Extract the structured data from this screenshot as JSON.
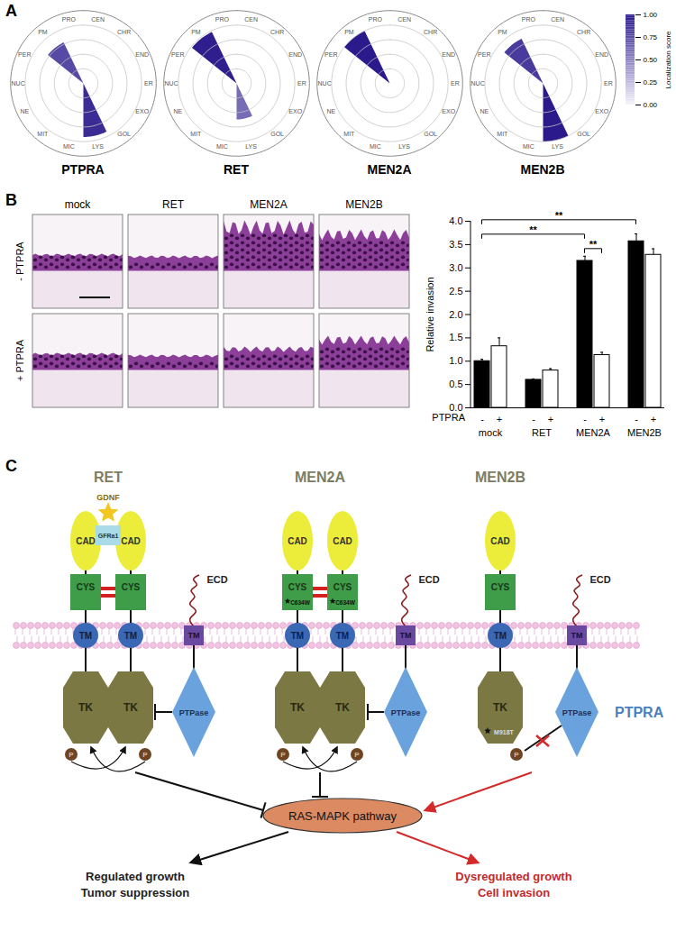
{
  "panel_labels": [
    "A",
    "B",
    "C"
  ],
  "colorbar": {
    "label": "Localization score",
    "range": [
      0,
      1
    ],
    "ticks": [
      {
        "value": 0,
        "label": "0.00"
      },
      {
        "value": 0.25,
        "label": "0.25"
      },
      {
        "value": 0.5,
        "label": "0.50"
      },
      {
        "value": 0.75,
        "label": "0.75"
      },
      {
        "value": 1,
        "label": "1.00"
      }
    ],
    "colors": [
      "#f4f3fb",
      "#2a1a8c"
    ]
  },
  "chart_data": [
    {
      "type": "polar_bar",
      "title": "PTPRA",
      "categories": [
        "CEN",
        "CHR",
        "END",
        "ER",
        "EXO",
        "GOL",
        "LYS",
        "MIC",
        "MIT",
        "NE",
        "NUC",
        "PER",
        "PM",
        "PRO"
      ],
      "values": [
        0,
        0,
        0,
        0,
        0,
        0,
        0.92,
        0,
        0,
        0,
        0,
        0,
        0.78,
        0
      ],
      "ylim": [
        0,
        1
      ],
      "yticks": [
        0.25,
        0.5,
        0.75,
        1
      ],
      "tick_labels": "x"
    },
    {
      "type": "polar_bar",
      "title": "RET",
      "categories": [
        "CEN",
        "CHR",
        "END",
        "ER",
        "EXO",
        "GOL",
        "LYS",
        "MIC",
        "MIT",
        "NE",
        "NUC",
        "PER",
        "PM",
        "PRO"
      ],
      "values": [
        0,
        0,
        0,
        0,
        0,
        0,
        0.62,
        0,
        0,
        0,
        0,
        0,
        0.98,
        0
      ],
      "ylim": [
        0,
        1
      ],
      "yticks": [
        0.25,
        0.5,
        0.75,
        1
      ],
      "tick_labels": "x"
    },
    {
      "type": "polar_bar",
      "title": "MEN2A",
      "categories": [
        "CEN",
        "CHR",
        "END",
        "ER",
        "EXO",
        "GOL",
        "LYS",
        "MIC",
        "MIT",
        "NE",
        "NUC",
        "PER",
        "PM",
        "PRO"
      ],
      "values": [
        0,
        0,
        0,
        0,
        0,
        0,
        0,
        0,
        0,
        0,
        0,
        0,
        1.0,
        0
      ],
      "ylim": [
        0,
        1
      ],
      "yticks": [
        0.25,
        0.5,
        0.75,
        1
      ],
      "tick_labels": "x"
    },
    {
      "type": "polar_bar",
      "title": "MEN2B",
      "categories": [
        "CEN",
        "CHR",
        "END",
        "ER",
        "EXO",
        "GOL",
        "LYS",
        "MIC",
        "MIT",
        "NE",
        "NUC",
        "PER",
        "PM",
        "PRO"
      ],
      "values": [
        0,
        0,
        0,
        0,
        0,
        0,
        1.0,
        0,
        0,
        0,
        0,
        0,
        0.85,
        0
      ],
      "ylim": [
        0,
        1
      ],
      "yticks": [
        0.25,
        0.5,
        0.75,
        1
      ],
      "tick_labels": "x"
    },
    {
      "type": "bar",
      "ylabel": "Relative invasion",
      "xlabel": "PTPRA",
      "categories": [
        "mock",
        "RET",
        "MEN2A",
        "MEN2B"
      ],
      "series": [
        {
          "name": "-",
          "color": "#000000",
          "values": [
            1.0,
            0.6,
            3.15,
            3.57
          ],
          "errors": [
            0.04,
            0.02,
            0.1,
            0.16
          ]
        },
        {
          "name": "+",
          "color": "#ffffff",
          "values": [
            1.32,
            0.8,
            1.13,
            3.28
          ],
          "errors": [
            0.18,
            0.04,
            0.06,
            0.13
          ]
        }
      ],
      "ylim": [
        0,
        4
      ],
      "yticks": [
        {
          "value": 0,
          "label": "0.0"
        },
        {
          "value": 0.5,
          "label": "0.5"
        },
        {
          "value": 1,
          "label": "1.0"
        },
        {
          "value": 1.5,
          "label": "1.5"
        },
        {
          "value": 2,
          "label": "2.0"
        },
        {
          "value": 2.5,
          "label": "2.5"
        },
        {
          "value": 3,
          "label": "3.0"
        },
        {
          "value": 3.5,
          "label": "3.5"
        },
        {
          "value": 4,
          "label": "4.0"
        }
      ],
      "annotations": [
        {
          "from": [
            "mock",
            "-"
          ],
          "to": [
            "MEN2A",
            "-"
          ],
          "label": "**"
        },
        {
          "from": [
            "MEN2A",
            "-"
          ],
          "to": [
            "MEN2A",
            "+"
          ],
          "label": "**"
        },
        {
          "from": [
            "mock",
            "-"
          ],
          "to": [
            "MEN2B",
            "-"
          ],
          "label": "**"
        }
      ]
    }
  ],
  "histology": {
    "columns": [
      "mock",
      "RET",
      "MEN2A",
      "MEN2B"
    ],
    "rows": [
      "- PTPRA",
      "+ PTPRA"
    ]
  },
  "diagram": {
    "columns": [
      {
        "title": "RET"
      },
      {
        "title": "MEN2A",
        "mutation": "C634W"
      },
      {
        "title": "MEN2B",
        "mutation": "M918T"
      }
    ],
    "ligand": "GDNF",
    "coreceptor": "GFRa1",
    "domains": {
      "cad": "CAD",
      "cys": "CYS",
      "tm": "TM",
      "tk": "TK"
    },
    "phospho": "P",
    "ptpra": {
      "name": "PTPRA",
      "ecd": "ECD",
      "tm": "TM",
      "ptpase": "PTPase"
    },
    "pathway": "RAS-MAPK pathway",
    "outcomes": [
      [
        "Regulated growth",
        "Tumor suppression"
      ],
      [
        "Dysregulated growth",
        "Cell invasion"
      ]
    ]
  }
}
